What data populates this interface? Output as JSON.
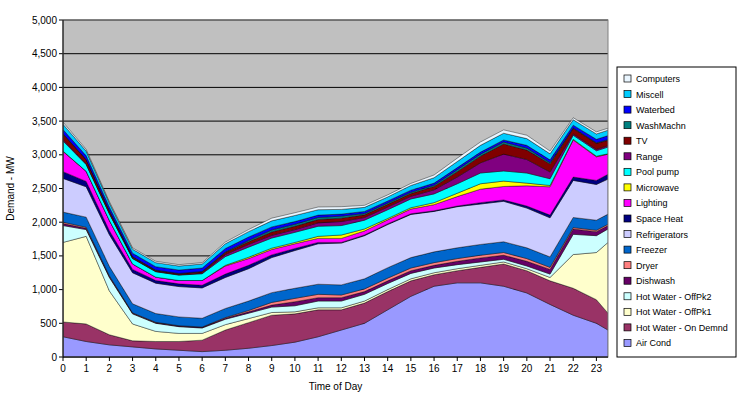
{
  "chart_data": {
    "type": "area",
    "stacked": true,
    "grid": true,
    "legend": "right",
    "x_label": "Time of Day",
    "y_label": "Demand - MW",
    "x": [
      0,
      1,
      2,
      3,
      4,
      5,
      6,
      7,
      8,
      9,
      10,
      11,
      12,
      13,
      14,
      15,
      16,
      17,
      18,
      19,
      20,
      21,
      22,
      23,
      23.5
    ],
    "xlim": [
      0,
      23.5
    ],
    "xticks": [
      0,
      1,
      2,
      3,
      4,
      5,
      6,
      7,
      8,
      9,
      10,
      11,
      12,
      13,
      14,
      15,
      16,
      17,
      18,
      19,
      20,
      21,
      22,
      23
    ],
    "ylim": [
      0,
      5000
    ],
    "yticks": [
      0,
      500,
      {
        "value": 1000,
        "label": "1,000"
      },
      {
        "value": 1500,
        "label": "1,500"
      },
      {
        "value": 2000,
        "label": "2,000"
      },
      {
        "value": 2500,
        "label": "2,500"
      },
      {
        "value": 3000,
        "label": "3,000"
      },
      {
        "value": 3500,
        "label": "3,500"
      },
      {
        "value": 4000,
        "label": "4,000"
      },
      {
        "value": 4500,
        "label": "4,500"
      },
      {
        "value": 5000,
        "label": "5,000"
      }
    ],
    "series": [
      {
        "name": "Air Cond",
        "color": "#9999FF",
        "values": [
          300,
          230,
          180,
          150,
          120,
          100,
          80,
          100,
          130,
          170,
          220,
          300,
          400,
          500,
          700,
          900,
          1050,
          1100,
          1100,
          1050,
          950,
          780,
          620,
          500,
          400
        ]
      },
      {
        "name": "Hot Water - On Demnd",
        "color": "#993366",
        "values": [
          220,
          260,
          150,
          90,
          110,
          130,
          170,
          300,
          380,
          450,
          420,
          400,
          300,
          300,
          270,
          230,
          170,
          180,
          230,
          330,
          330,
          350,
          400,
          350,
          250
        ]
      },
      {
        "name": "Hot Water - OffPk1",
        "color": "#FFFFCC",
        "values": [
          1180,
          1300,
          650,
          250,
          150,
          120,
          100,
          80,
          60,
          40,
          30,
          30,
          30,
          30,
          30,
          30,
          30,
          30,
          30,
          30,
          30,
          50,
          500,
          700,
          1050
        ]
      },
      {
        "name": "Hot Water - OffPk2",
        "color": "#CCFFFF",
        "values": [
          250,
          100,
          200,
          150,
          120,
          100,
          80,
          80,
          80,
          80,
          90,
          100,
          100,
          100,
          90,
          80,
          70,
          60,
          50,
          40,
          40,
          50,
          300,
          250,
          200
        ]
      },
      {
        "name": "Dishwash",
        "color": "#660066",
        "values": [
          30,
          20,
          15,
          10,
          10,
          10,
          10,
          15,
          20,
          30,
          60,
          50,
          50,
          40,
          40,
          40,
          40,
          50,
          60,
          60,
          70,
          70,
          80,
          60,
          50
        ]
      },
      {
        "name": "Dryer",
        "color": "#FF8080",
        "values": [
          20,
          15,
          10,
          5,
          5,
          5,
          5,
          10,
          20,
          40,
          50,
          50,
          40,
          40,
          40,
          40,
          40,
          40,
          40,
          40,
          40,
          30,
          20,
          20,
          20
        ]
      },
      {
        "name": "Freezer",
        "color": "#0066CC",
        "values": [
          150,
          150,
          140,
          135,
          130,
          130,
          130,
          135,
          140,
          145,
          150,
          150,
          150,
          150,
          155,
          155,
          160,
          160,
          160,
          160,
          160,
          155,
          150,
          150,
          150
        ]
      },
      {
        "name": "Refrigerators",
        "color": "#CCCCFF",
        "values": [
          500,
          450,
          470,
          460,
          450,
          450,
          450,
          460,
          480,
          520,
          560,
          600,
          620,
          640,
          640,
          640,
          600,
          610,
          600,
          600,
          590,
          580,
          550,
          530,
          520
        ]
      },
      {
        "name": "Space Heat",
        "color": "#000080",
        "values": [
          100,
          80,
          60,
          50,
          40,
          40,
          40,
          50,
          50,
          40,
          30,
          20,
          10,
          10,
          10,
          10,
          10,
          10,
          20,
          20,
          30,
          40,
          50,
          60,
          70
        ]
      },
      {
        "name": "Lighting",
        "color": "#FF00FF",
        "values": [
          300,
          150,
          150,
          80,
          50,
          50,
          70,
          120,
          100,
          80,
          70,
          60,
          60,
          60,
          60,
          70,
          90,
          140,
          200,
          200,
          300,
          420,
          550,
          350,
          300
        ]
      },
      {
        "name": "Microwave",
        "color": "#FFFF00",
        "values": [
          5,
          0,
          0,
          0,
          0,
          0,
          0,
          10,
          20,
          20,
          20,
          30,
          50,
          30,
          20,
          20,
          30,
          50,
          80,
          80,
          40,
          20,
          10,
          10,
          5
        ]
      },
      {
        "name": "Pool pump",
        "color": "#00FFFF",
        "values": [
          150,
          100,
          100,
          80,
          80,
          80,
          100,
          130,
          150,
          150,
          150,
          150,
          140,
          130,
          130,
          130,
          130,
          140,
          160,
          150,
          150,
          100,
          60,
          80,
          100
        ]
      },
      {
        "name": "Range",
        "color": "#800080",
        "values": [
          20,
          10,
          5,
          5,
          5,
          5,
          10,
          30,
          40,
          40,
          40,
          50,
          60,
          40,
          40,
          40,
          60,
          100,
          150,
          250,
          200,
          100,
          20,
          20,
          20
        ]
      },
      {
        "name": "TV",
        "color": "#800000",
        "values": [
          80,
          60,
          40,
          20,
          15,
          15,
          20,
          30,
          40,
          50,
          50,
          50,
          50,
          40,
          40,
          40,
          50,
          80,
          100,
          150,
          140,
          120,
          80,
          90,
          80
        ]
      },
      {
        "name": "WashMachn",
        "color": "#008080",
        "values": [
          10,
          5,
          5,
          5,
          5,
          5,
          5,
          10,
          20,
          30,
          30,
          30,
          30,
          20,
          20,
          20,
          20,
          30,
          30,
          30,
          30,
          20,
          10,
          10,
          10
        ]
      },
      {
        "name": "Waterbed",
        "color": "#0000FF",
        "values": [
          60,
          55,
          50,
          50,
          50,
          50,
          50,
          50,
          50,
          45,
          40,
          35,
          30,
          30,
          30,
          30,
          30,
          30,
          30,
          30,
          40,
          40,
          40,
          50,
          60
        ]
      },
      {
        "name": "Miscell",
        "color": "#00CCFF",
        "values": [
          80,
          70,
          60,
          60,
          60,
          60,
          60,
          70,
          80,
          90,
          90,
          80,
          70,
          60,
          60,
          70,
          80,
          90,
          100,
          100,
          100,
          90,
          80,
          80,
          80
        ]
      },
      {
        "name": "Computers",
        "color": "#EAF6FF",
        "values": [
          30,
          25,
          20,
          20,
          20,
          20,
          20,
          25,
          30,
          40,
          40,
          40,
          40,
          30,
          30,
          30,
          40,
          50,
          50,
          50,
          50,
          40,
          30,
          30,
          30
        ]
      }
    ]
  }
}
